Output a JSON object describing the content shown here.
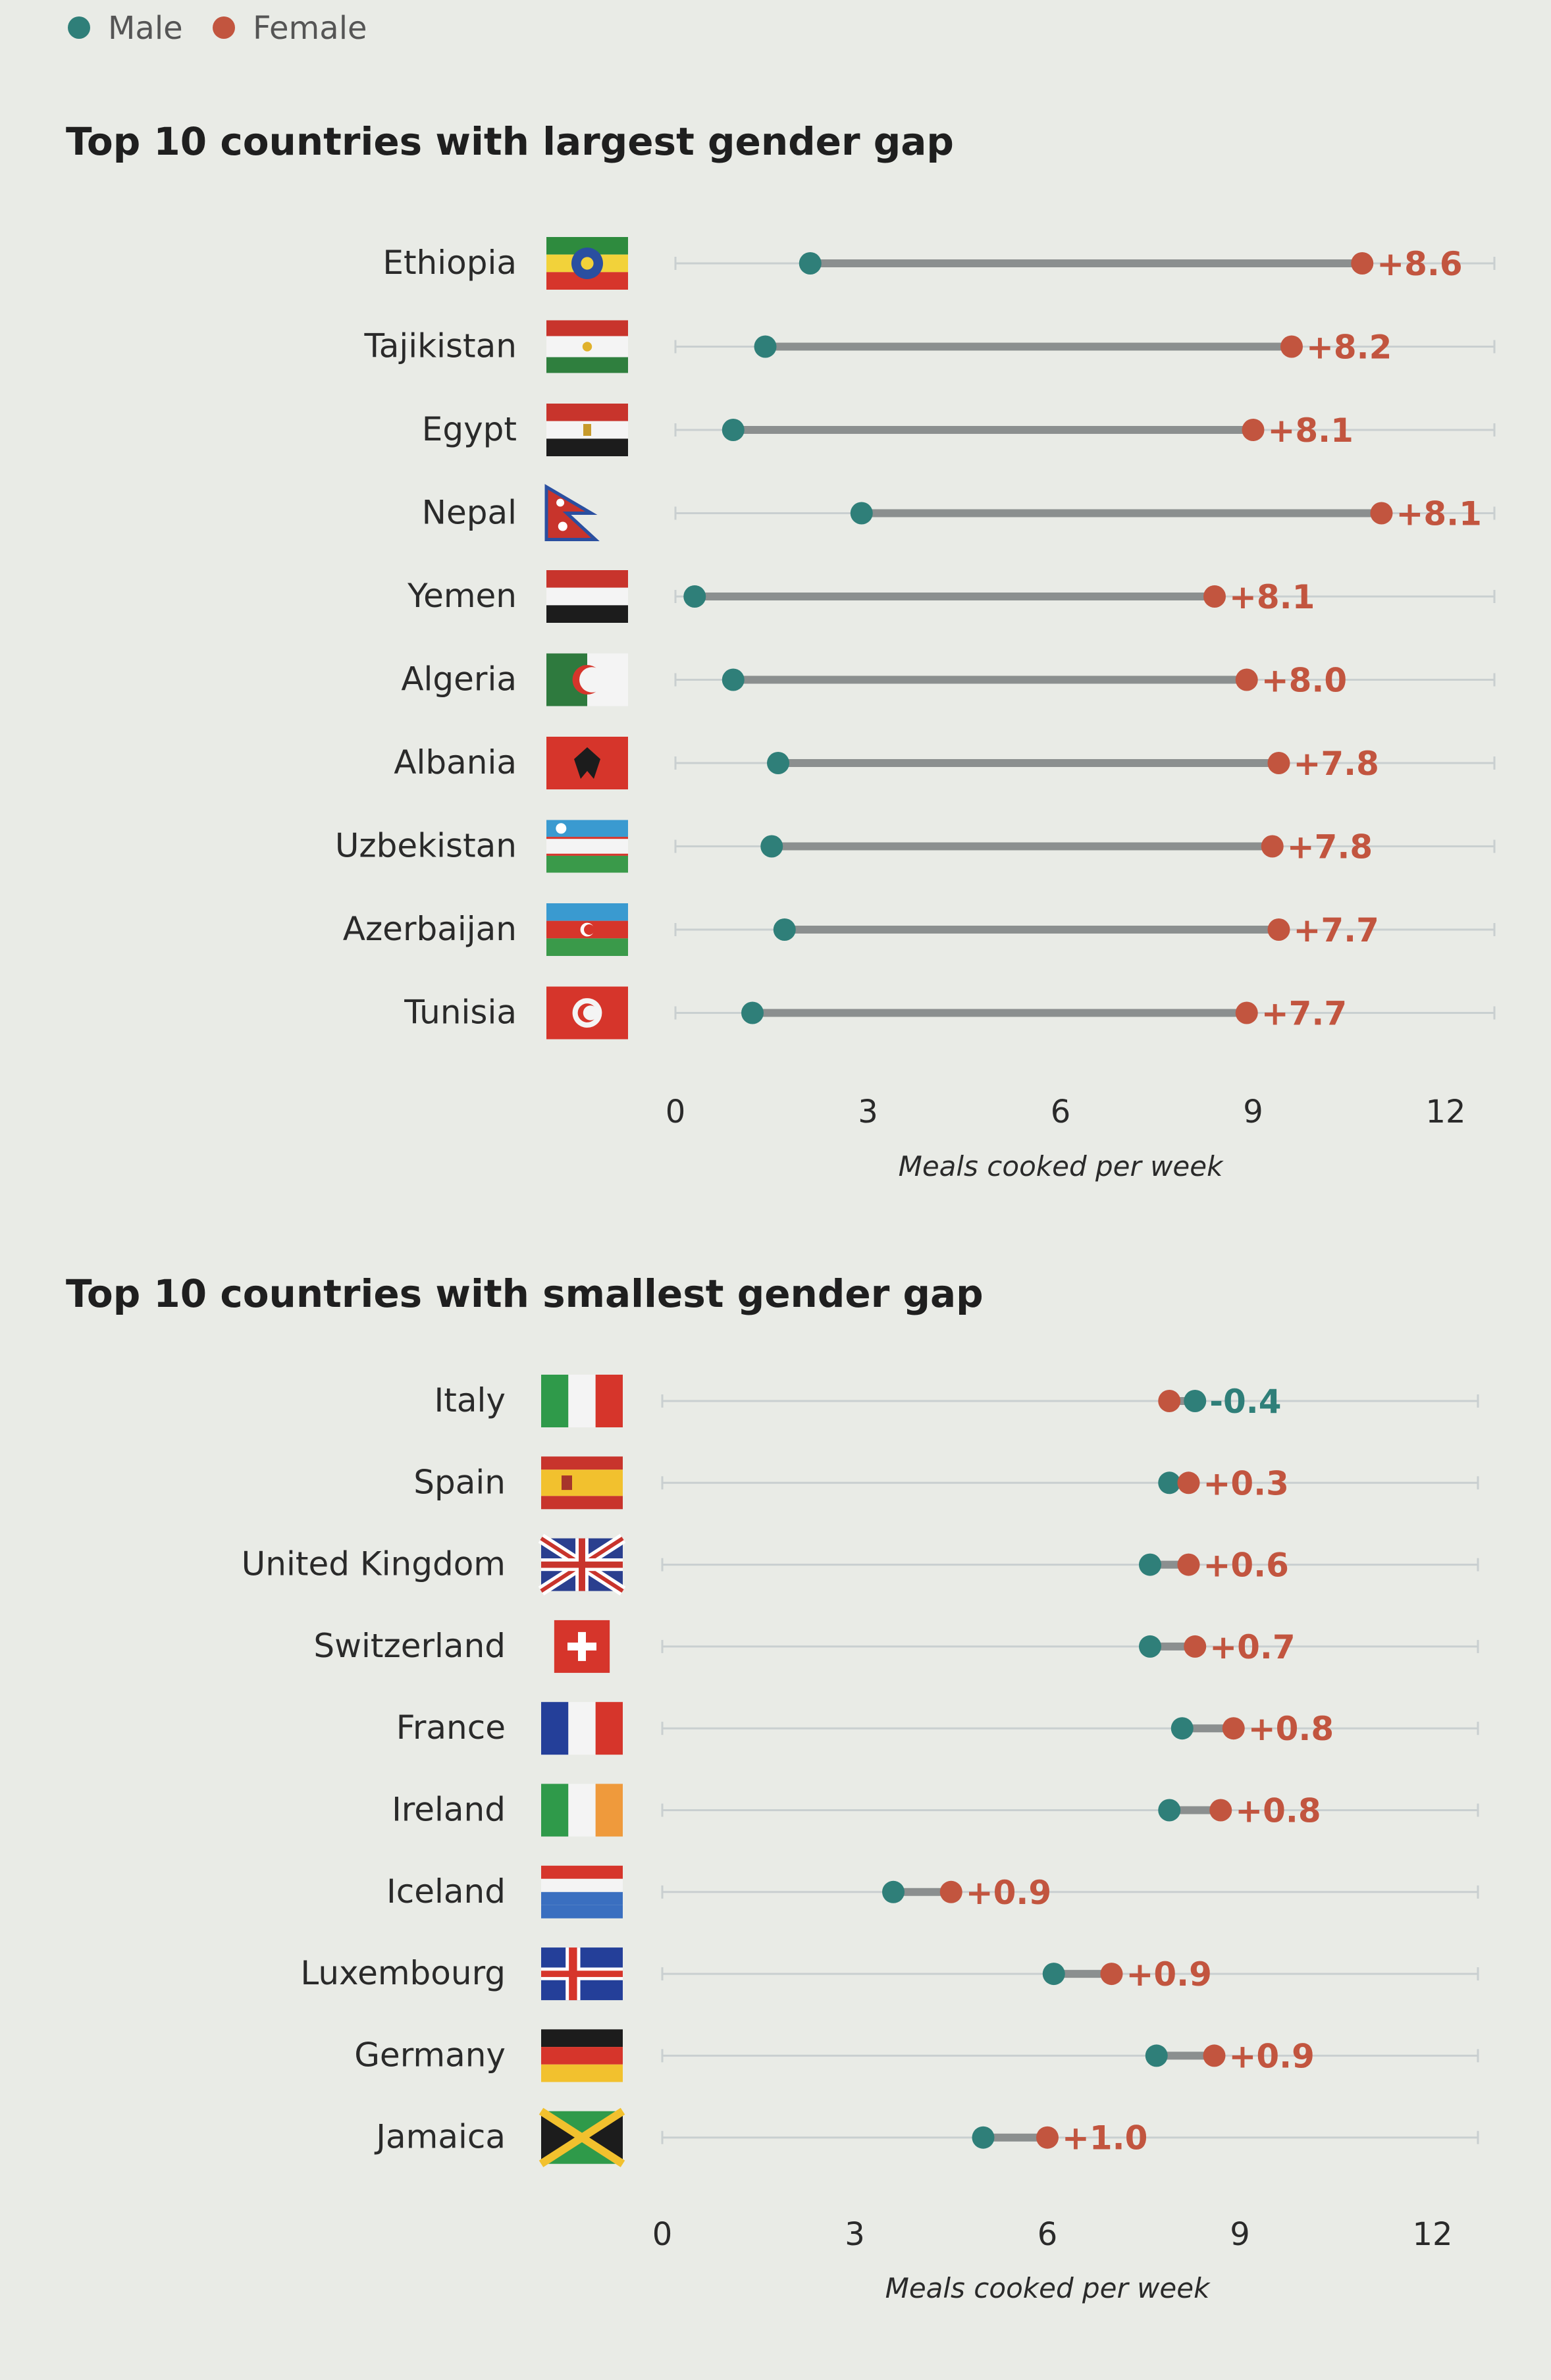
{
  "legend": {
    "items": [
      {
        "label": "Male",
        "color": "#2f7f79"
      },
      {
        "label": "Female",
        "color": "#c2553f"
      }
    ]
  },
  "colors": {
    "male": "#2f7f79",
    "female": "#c2553f",
    "positive_label": "#c2553f",
    "negative_label": "#2f7f79"
  },
  "chart_data": [
    {
      "type": "dumbbell",
      "title": "Top 10 countries with largest gender gap",
      "xlabel": "Meals cooked per week",
      "xlim": [
        0,
        12.5
      ],
      "xticks": [
        0,
        3,
        6,
        9,
        12
      ],
      "series_order": [
        "Male",
        "Female"
      ],
      "rows": [
        {
          "country": "Ethiopia",
          "flag": "ethiopia",
          "male": 2.1,
          "female": 10.7,
          "gap_label": "+8.6"
        },
        {
          "country": "Tajikistan",
          "flag": "tajikistan",
          "male": 1.4,
          "female": 9.6,
          "gap_label": "+8.2"
        },
        {
          "country": "Egypt",
          "flag": "egypt",
          "male": 0.9,
          "female": 9.0,
          "gap_label": "+8.1"
        },
        {
          "country": "Nepal",
          "flag": "nepal",
          "male": 2.9,
          "female": 11.0,
          "gap_label": "+8.1"
        },
        {
          "country": "Yemen",
          "flag": "yemen",
          "male": 0.3,
          "female": 8.4,
          "gap_label": "+8.1"
        },
        {
          "country": "Algeria",
          "flag": "algeria",
          "male": 0.9,
          "female": 8.9,
          "gap_label": "+8.0"
        },
        {
          "country": "Albania",
          "flag": "albania",
          "male": 1.6,
          "female": 9.4,
          "gap_label": "+7.8"
        },
        {
          "country": "Uzbekistan",
          "flag": "uzbekistan",
          "male": 1.5,
          "female": 9.3,
          "gap_label": "+7.8"
        },
        {
          "country": "Azerbaijan",
          "flag": "azerbaijan",
          "male": 1.7,
          "female": 9.4,
          "gap_label": "+7.7"
        },
        {
          "country": "Tunisia",
          "flag": "tunisia",
          "male": 1.2,
          "female": 8.9,
          "gap_label": "+7.7"
        }
      ]
    },
    {
      "type": "dumbbell",
      "title": "Top 10 countries with smallest gender gap",
      "xlabel": "Meals cooked per week",
      "xlim": [
        0,
        12.5
      ],
      "xticks": [
        0,
        3,
        6,
        9,
        12
      ],
      "series_order": [
        "Male",
        "Female"
      ],
      "rows": [
        {
          "country": "Italy",
          "flag": "italy",
          "male": 8.3,
          "female": 7.9,
          "gap_label": "-0.4"
        },
        {
          "country": "Spain",
          "flag": "spain",
          "male": 7.9,
          "female": 8.2,
          "gap_label": "+0.3"
        },
        {
          "country": "United Kingdom",
          "flag": "uk",
          "male": 7.6,
          "female": 8.2,
          "gap_label": "+0.6"
        },
        {
          "country": "Switzerland",
          "flag": "switzerland",
          "male": 7.6,
          "female": 8.3,
          "gap_label": "+0.7"
        },
        {
          "country": "France",
          "flag": "france",
          "male": 8.1,
          "female": 8.9,
          "gap_label": "+0.8"
        },
        {
          "country": "Ireland",
          "flag": "ireland",
          "male": 7.9,
          "female": 8.7,
          "gap_label": "+0.8"
        },
        {
          "country": "Iceland",
          "flag": "iceland",
          "male": 3.6,
          "female": 4.5,
          "gap_label": "+0.9"
        },
        {
          "country": "Luxembourg",
          "flag": "luxembourg",
          "male": 6.1,
          "female": 7.0,
          "gap_label": "+0.9"
        },
        {
          "country": "Germany",
          "flag": "germany",
          "male": 7.7,
          "female": 8.6,
          "gap_label": "+0.9"
        },
        {
          "country": "Jamaica",
          "flag": "jamaica",
          "male": 5.0,
          "female": 6.0,
          "gap_label": "+1.0"
        }
      ]
    }
  ]
}
